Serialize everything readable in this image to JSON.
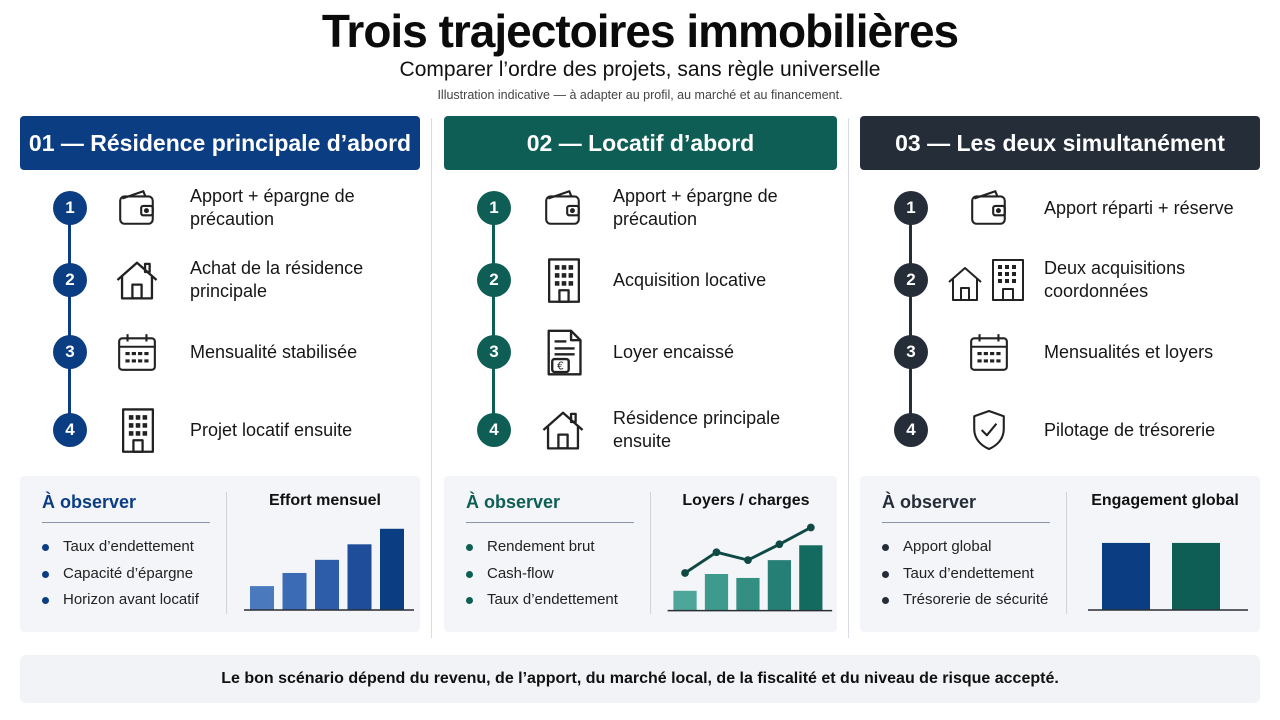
{
  "header": {
    "title": "Trois trajectoires immobilières",
    "subtitle": "Comparer l’ordre des projets, sans règle universelle",
    "note": "Illustration indicative — à adapter au profil, au marché et au financement."
  },
  "colors": {
    "blue": "#0b3d83",
    "green": "#0e5e55",
    "dark": "#252d39"
  },
  "columns": [
    {
      "title": "01 — Résidence principale d’abord",
      "steps": [
        {
          "num": "1",
          "icon": "wallet-icon",
          "text": "Apport + épargne de précaution"
        },
        {
          "num": "2",
          "icon": "house-icon",
          "text": "Achat de la résidence principale"
        },
        {
          "num": "3",
          "icon": "calendar-icon",
          "text": "Mensualité stabilisée"
        },
        {
          "num": "4",
          "icon": "building-icon",
          "text": "Projet locatif ensuite"
        }
      ],
      "observe_title": "À observer",
      "observe": [
        "Taux d’endettement",
        "Capacité d’épargne",
        "Horizon avant locatif"
      ],
      "chart_title": "Effort mensuel"
    },
    {
      "title": "02 — Locatif d’abord",
      "steps": [
        {
          "num": "1",
          "icon": "wallet-icon",
          "text": "Apport + épargne de précaution"
        },
        {
          "num": "2",
          "icon": "building-icon",
          "text": "Acquisition locative"
        },
        {
          "num": "3",
          "icon": "rent-document-icon",
          "text": "Loyer encaissé"
        },
        {
          "num": "4",
          "icon": "house-icon",
          "text": "Résidence principale ensuite"
        }
      ],
      "observe_title": "À observer",
      "observe": [
        "Rendement brut",
        "Cash-flow",
        "Taux d’endettement"
      ],
      "chart_title": "Loyers / charges"
    },
    {
      "title": "03 — Les deux simultanément",
      "steps": [
        {
          "num": "1",
          "icon": "wallet-icon",
          "text": "Apport réparti + réserve"
        },
        {
          "num": "2",
          "icon": "house-and-building-icon",
          "text": "Deux acquisitions coordonnées"
        },
        {
          "num": "3",
          "icon": "calendar-icon",
          "text": "Mensualités et loyers"
        },
        {
          "num": "4",
          "icon": "shield-check-icon",
          "text": "Pilotage de trésorerie"
        }
      ],
      "observe_title": "À observer",
      "observe": [
        "Apport global",
        "Taux d’endettement",
        "Trésorerie de sécurité"
      ],
      "chart_title": "Engagement global"
    }
  ],
  "chart_data": [
    {
      "type": "bar",
      "title": "Effort mensuel",
      "values": [
        1.0,
        1.55,
        2.1,
        2.75,
        3.4
      ],
      "ylim": [
        0,
        3.6
      ]
    },
    {
      "type": "bar",
      "title": "Loyers / charges",
      "values": [
        1.0,
        1.85,
        1.65,
        2.55,
        3.3
      ],
      "line": [
        1.9,
        2.95,
        2.55,
        3.35,
        4.2
      ],
      "ylim": [
        0,
        4.4
      ]
    },
    {
      "type": "bar",
      "title": "Engagement global",
      "values": [
        3.0,
        3.0
      ],
      "ylim": [
        0,
        3.4
      ]
    }
  ],
  "footer": "Le bon scénario dépend du revenu, de l’apport, du marché local, de la fiscalité et du niveau de risque accepté."
}
